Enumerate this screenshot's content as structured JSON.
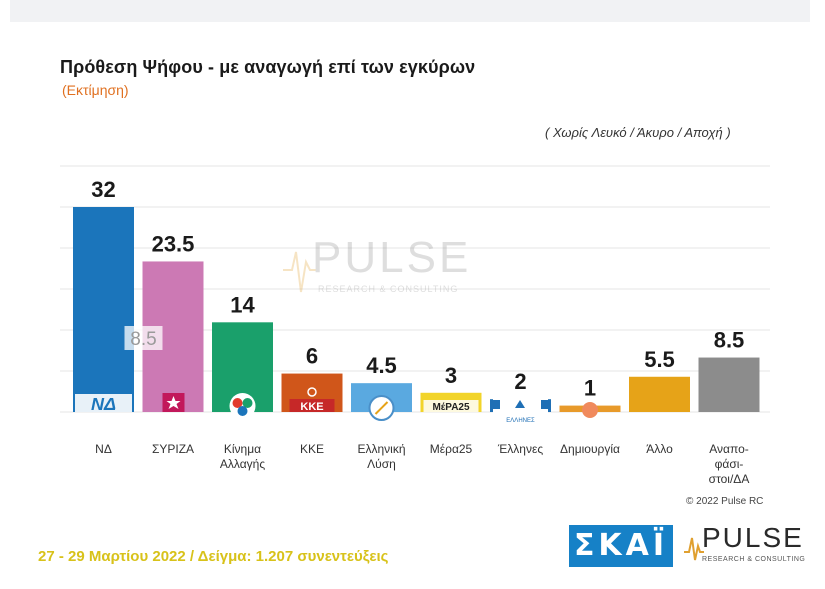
{
  "title": "Πρόθεση Ψήφου - με αναγωγή επί των εγκύρων",
  "subtitle": "(Εκτίμηση)",
  "note": "( Χωρίς Λευκό / Άκυρο / Αποχή )",
  "watermark": {
    "name": "PULSE",
    "tagline": "RESEARCH & CONSULTING"
  },
  "copyright": "© 2022 Pulse RC",
  "footer": "27 - 29 Μαρτίου 2022 / Δείγμα: 1.207 συνεντεύξεις",
  "logos": {
    "skai": "ΣΚΑΪ",
    "pulse": "PULSE",
    "pulse_tagline": "RESEARCH & CONSULTING"
  },
  "chart_data": {
    "type": "bar",
    "categories": [
      "ΝΔ",
      "ΣΥΡΙΖΑ",
      "Κίνημα Αλλαγής",
      "ΚΚΕ",
      "Ελληνική Λύση",
      "Μέρα25",
      "Έλληνες",
      "Δημιουργία",
      "Άλλο",
      "Αναπο-φάσι-στοι/ΔΑ"
    ],
    "category_lines": [
      [
        "ΝΔ"
      ],
      [
        "ΣΥΡΙΖΑ"
      ],
      [
        "Κίνημα",
        "Αλλαγής"
      ],
      [
        "ΚΚΕ"
      ],
      [
        "Ελληνική",
        "Λύση"
      ],
      [
        "Μέρα25"
      ],
      [
        "Έλληνες"
      ],
      [
        "Δημιουργία"
      ],
      [
        "Άλλο"
      ],
      [
        "Αναπο-",
        "φάσι-",
        "στοι/ΔΑ"
      ]
    ],
    "values": [
      32,
      23.5,
      14,
      6,
      4.5,
      3,
      2,
      1,
      5.5,
      8.5
    ],
    "value_labels": [
      "32",
      "23.5",
      "14",
      "6",
      "4.5",
      "3",
      "2",
      "1",
      "5.5",
      "8.5"
    ],
    "colors": [
      "#1b75bb",
      "#cc79b4",
      "#1aa06b",
      "#d0561a",
      "#5aa9e0",
      "#f2d42a",
      "#1f6fb5",
      "#e89a2a",
      "#e6a318",
      "#8c8c8c"
    ],
    "overlay_label": {
      "text": "8.5",
      "category": "ΣΥΡΙΖΑ"
    },
    "party_marks": [
      "ΝΔ",
      "",
      "",
      "ΚΚΕ",
      "",
      "ΜέΡΑ25",
      "ΕΛΛΗΝΕΣ",
      "",
      "",
      ""
    ],
    "ylim": [
      0,
      35
    ],
    "grid": true,
    "xlabel": "",
    "ylabel": ""
  }
}
